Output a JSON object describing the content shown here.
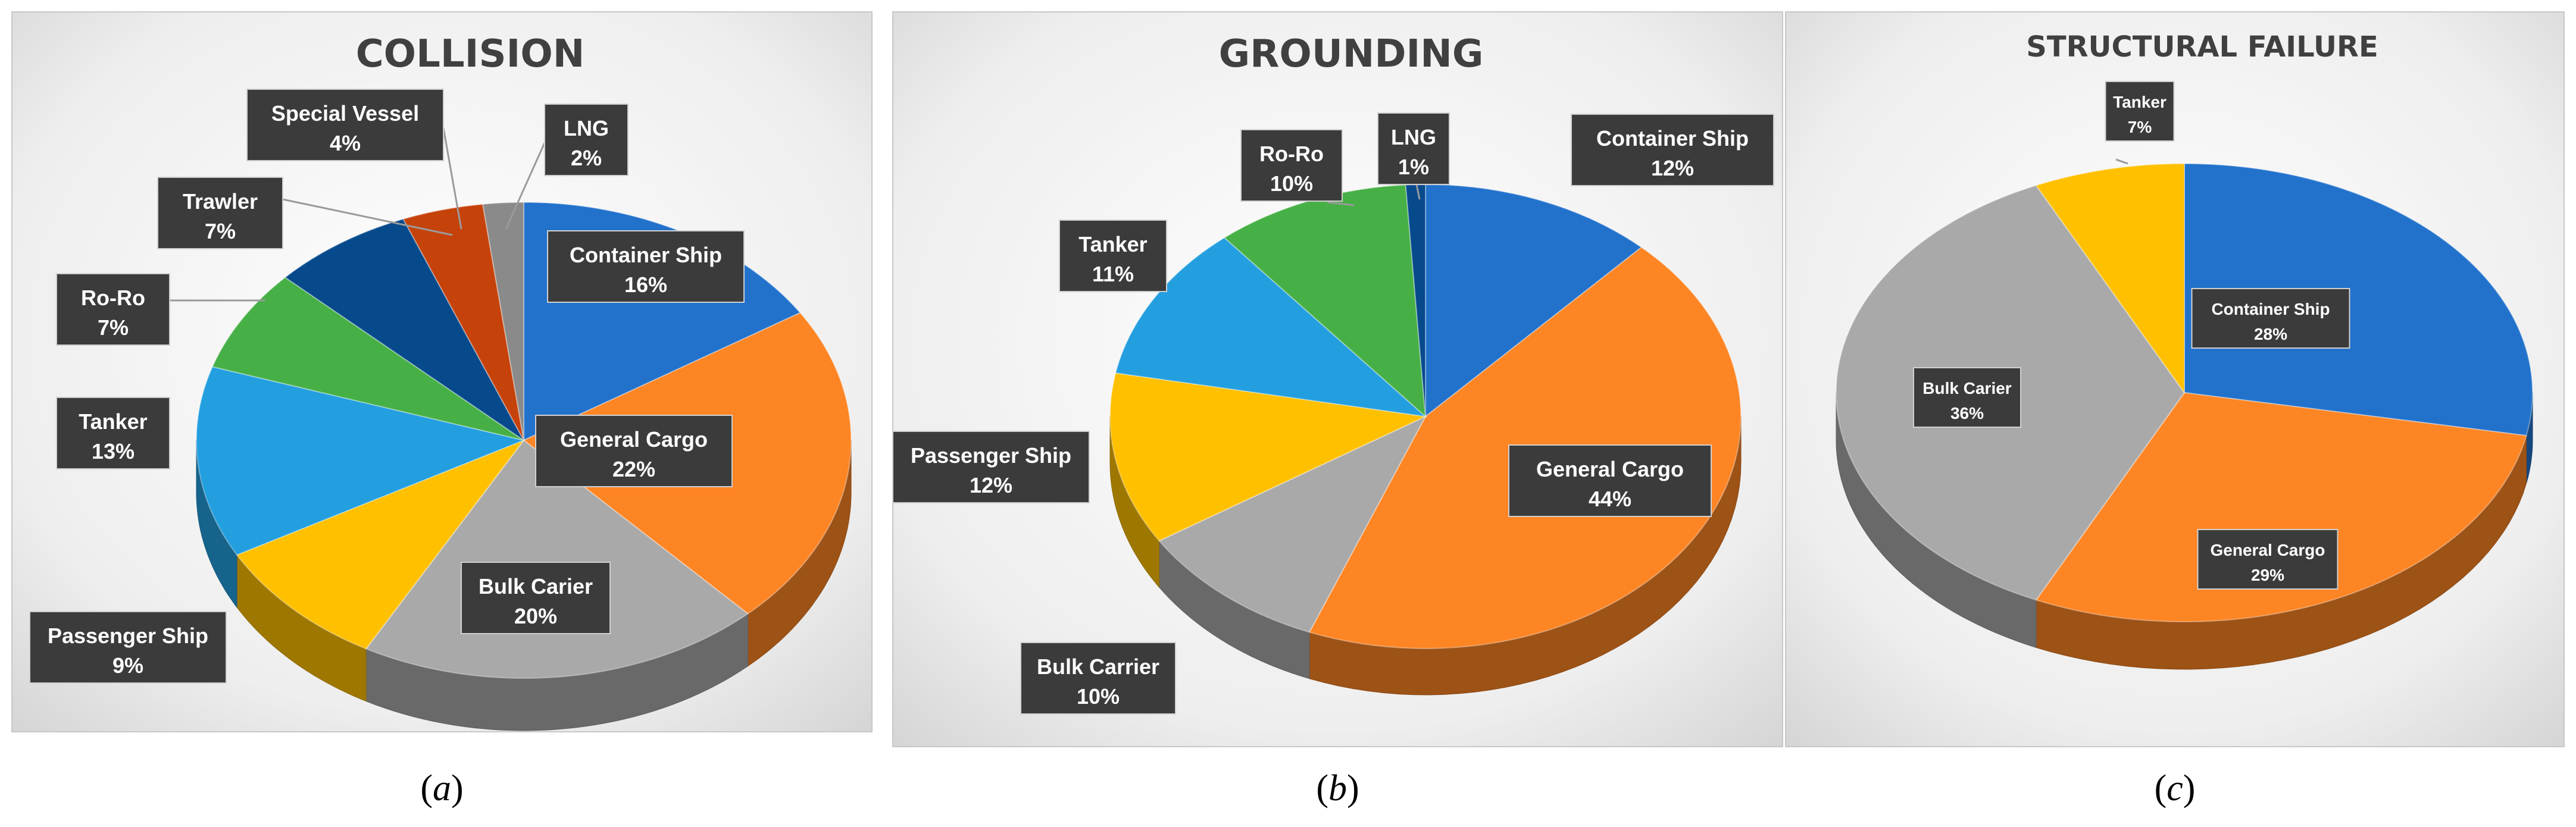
{
  "chart_data": [
    {
      "type": "pie",
      "title": "COLLISION",
      "panel_label": "a",
      "slices": [
        {
          "label": "Container Ship",
          "value": 16,
          "value_text": "16%",
          "color": "#2272cc"
        },
        {
          "label": "General Cargo",
          "value": 22,
          "value_text": "22%",
          "color": "#fd8524"
        },
        {
          "label": "Bulk Carier",
          "value": 20,
          "value_text": "20%",
          "color": "#a9a9a9"
        },
        {
          "label": "Passenger Ship",
          "value": 9,
          "value_text": "9%",
          "color": "#ffc000"
        },
        {
          "label": "Tanker",
          "value": 13,
          "value_text": "13%",
          "color": "#239fe0"
        },
        {
          "label": "Ro-Ro",
          "value": 7,
          "value_text": "7%",
          "color": "#46b046"
        },
        {
          "label": "Trawler",
          "value": 7,
          "value_text": "7%",
          "color": "#064a8c"
        },
        {
          "label": "Special Vessel",
          "value": 4,
          "value_text": "4%",
          "color": "#c6420b"
        },
        {
          "label": "LNG",
          "value": 2,
          "value_text": "2%",
          "color": "#8a8a8a"
        }
      ]
    },
    {
      "type": "pie",
      "title": "GROUNDING",
      "panel_label": "b",
      "slices": [
        {
          "label": "Container Ship",
          "value": 12,
          "value_text": "12%",
          "color": "#2272cc"
        },
        {
          "label": "General Cargo",
          "value": 44,
          "value_text": "44%",
          "color": "#fd8524"
        },
        {
          "label": "Bulk Carrier",
          "value": 10,
          "value_text": "10%",
          "color": "#a9a9a9"
        },
        {
          "label": "Passenger Ship",
          "value": 12,
          "value_text": "12%",
          "color": "#ffc000"
        },
        {
          "label": "Tanker",
          "value": 11,
          "value_text": "11%",
          "color": "#239fe0"
        },
        {
          "label": "Ro-Ro",
          "value": 10,
          "value_text": "10%",
          "color": "#46b046"
        },
        {
          "label": "LNG",
          "value": 1,
          "value_text": "1%",
          "color": "#064a8c"
        }
      ]
    },
    {
      "type": "pie",
      "title": "STRUCTURAL FAILURE",
      "panel_label": "c",
      "slices": [
        {
          "label": "Container Ship",
          "value": 28,
          "value_text": "28%",
          "color": "#2272cc"
        },
        {
          "label": "General Cargo",
          "value": 29,
          "value_text": "29%",
          "color": "#fd8524"
        },
        {
          "label": "Bulk Carier",
          "value": 36,
          "value_text": "36%",
          "color": "#a9a9a9"
        },
        {
          "label": "Tanker",
          "value": 7,
          "value_text": "7%",
          "color": "#ffc000"
        }
      ]
    }
  ]
}
